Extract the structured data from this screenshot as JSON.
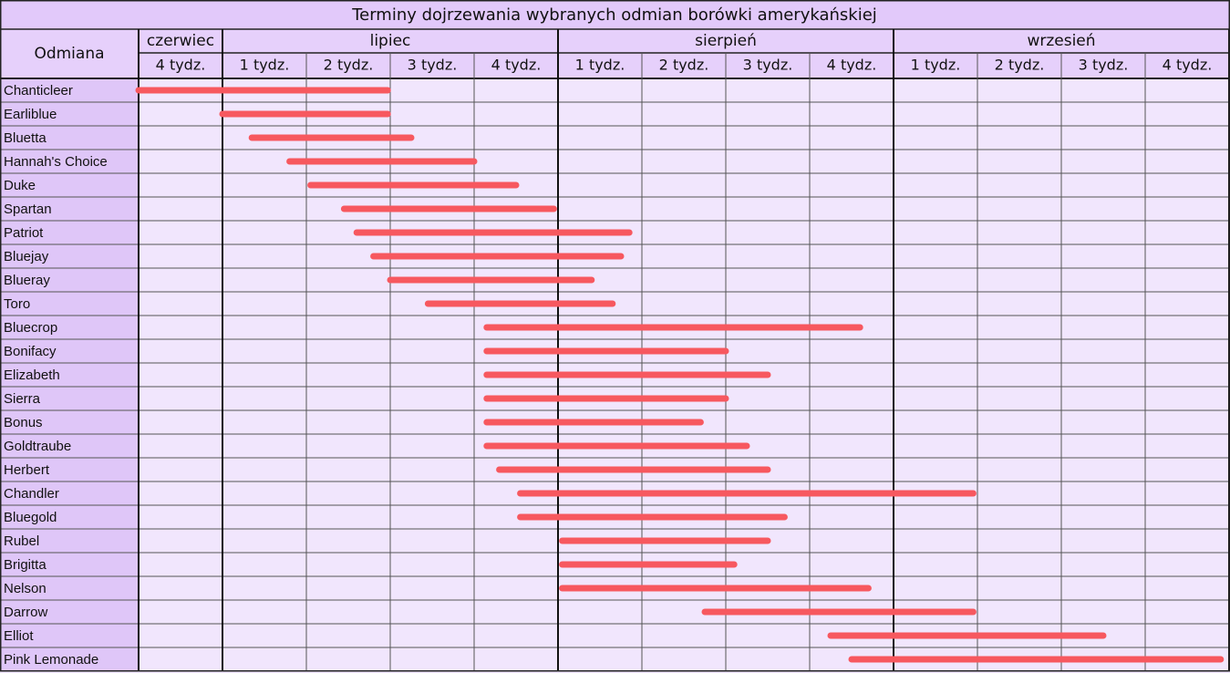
{
  "chart_data": {
    "type": "gantt",
    "title": "Terminy dojrzewania wybranych odmian borówki amerykańskiej",
    "category_header": "Odmiana",
    "months": [
      {
        "name": "czerwiec",
        "weeks": [
          "4 tydz."
        ]
      },
      {
        "name": "lipiec",
        "weeks": [
          "1 tydz.",
          "2 tydz.",
          "3 tydz.",
          "4 tydz."
        ]
      },
      {
        "name": "sierpień",
        "weeks": [
          "1 tydz.",
          "2 tydz.",
          "3 tydz.",
          "4 tydz."
        ]
      },
      {
        "name": "wrzesień",
        "weeks": [
          "1 tydz.",
          "2 tydz.",
          "3 tydz.",
          "4 tydz."
        ]
      }
    ],
    "categories": [
      "Chanticleer",
      "Earliblue",
      "Bluetta",
      "Hannah's Choice",
      "Duke",
      "Spartan",
      "Patriot",
      "Bluejay",
      "Blueray",
      "Toro",
      "Bluecrop",
      "Bonifacy",
      "Elizabeth",
      "Sierra",
      "Bonus",
      "Goldtraube",
      "Herbert",
      "Chandler",
      "Bluegold",
      "Rubel",
      "Brigitta",
      "Nelson",
      "Darrow",
      "Elliot",
      "Pink Lemonade"
    ],
    "start": [
      0,
      1,
      1.35,
      1.8,
      2.05,
      2.45,
      2.6,
      2.8,
      3,
      3.45,
      4.15,
      4.15,
      4.15,
      4.15,
      4.15,
      4.15,
      4.3,
      4.55,
      4.55,
      5.05,
      5.05,
      5.05,
      6.75,
      8.25,
      8.5
    ],
    "end": [
      2.97,
      2.97,
      3.25,
      4,
      4.5,
      4.95,
      5.85,
      5.75,
      5.4,
      5.65,
      8.6,
      7,
      7.5,
      7,
      6.7,
      7.25,
      7.5,
      9.95,
      7.7,
      7.5,
      7.1,
      8.7,
      9.95,
      11.5,
      12.9
    ],
    "color": "#f7585f",
    "xlim": [
      0,
      13
    ]
  }
}
